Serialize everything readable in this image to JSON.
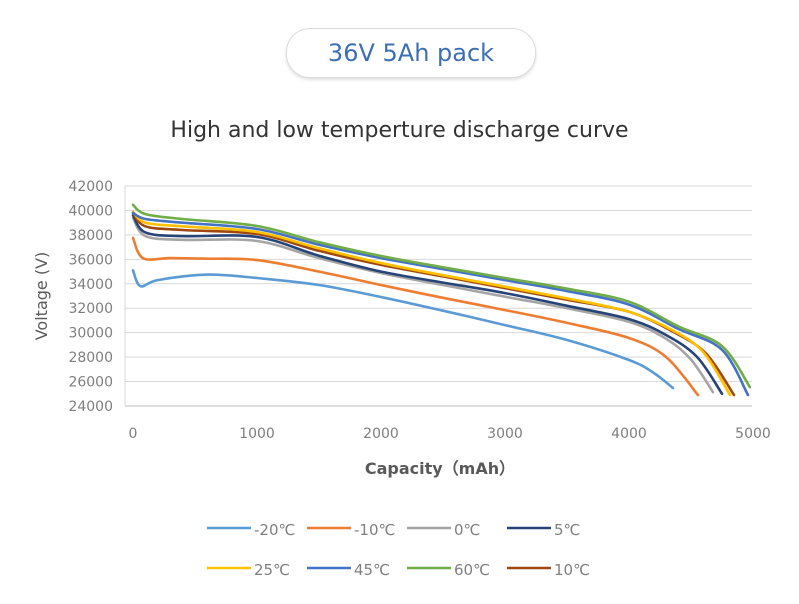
{
  "header": {
    "badge_label": "36V 5Ah pack"
  },
  "chart_data": {
    "type": "line",
    "title": "High and low temperture discharge curve",
    "xlabel": "Capacity（mAh）",
    "ylabel": "Voltage (V)",
    "xlim": [
      0,
      5000
    ],
    "ylim": [
      24000,
      42000
    ],
    "xticks": [
      0,
      1000,
      2000,
      3000,
      4000,
      5000
    ],
    "yticks": [
      24000,
      26000,
      28000,
      30000,
      32000,
      34000,
      36000,
      38000,
      40000,
      42000
    ],
    "grid": "horizontal",
    "legend_position": "bottom",
    "series": [
      {
        "name": "-20℃",
        "color": "#5b9bd5",
        "x": [
          0,
          60,
          200,
          600,
          1000,
          1500,
          2000,
          2500,
          3000,
          3500,
          4000,
          4200,
          4355
        ],
        "y": [
          35100,
          33800,
          34300,
          34750,
          34470,
          33900,
          32920,
          31800,
          30620,
          29400,
          27760,
          26700,
          25470
        ]
      },
      {
        "name": "-10℃",
        "color": "#ed7d31",
        "x": [
          0,
          80,
          300,
          600,
          1000,
          1500,
          2000,
          2500,
          3000,
          3500,
          4000,
          4300,
          4556
        ],
        "y": [
          37750,
          36100,
          36100,
          36050,
          35940,
          35000,
          33900,
          32850,
          31850,
          30800,
          29560,
          28000,
          24900
        ]
      },
      {
        "name": "0℃",
        "color": "#a5a5a5",
        "x": [
          0,
          100,
          400,
          1000,
          1500,
          2000,
          2500,
          3000,
          3500,
          4000,
          4300,
          4500,
          4677
        ],
        "y": [
          39400,
          37900,
          37600,
          37500,
          36100,
          34880,
          33900,
          32940,
          32000,
          30890,
          29500,
          27800,
          25140
        ]
      },
      {
        "name": "5℃",
        "color": "#264478",
        "x": [
          0,
          100,
          400,
          1000,
          1500,
          2000,
          2500,
          3000,
          3500,
          4000,
          4300,
          4550,
          4750
        ],
        "y": [
          39600,
          38200,
          37900,
          37830,
          36300,
          35000,
          34100,
          33240,
          32200,
          31110,
          29800,
          28000,
          25000
        ]
      },
      {
        "name": "25℃",
        "color": "#ffc000",
        "x": [
          0,
          100,
          400,
          1000,
          1500,
          2000,
          2500,
          3000,
          3500,
          4000,
          4350,
          4600,
          4815
        ],
        "y": [
          39900,
          39000,
          38700,
          38240,
          36900,
          35700,
          34700,
          33760,
          32800,
          31710,
          30200,
          28400,
          24900
        ]
      },
      {
        "name": "45℃",
        "color": "#4472c4",
        "x": [
          0,
          100,
          400,
          1000,
          1500,
          2000,
          2500,
          3000,
          3500,
          4000,
          4400,
          4750,
          4960
        ],
        "y": [
          39800,
          39300,
          39000,
          38480,
          37200,
          36100,
          35200,
          34300,
          33400,
          32300,
          30300,
          28600,
          24900
        ]
      },
      {
        "name": "60℃",
        "color": "#70ad47",
        "x": [
          0,
          100,
          400,
          1000,
          1500,
          2000,
          2500,
          3000,
          3500,
          4000,
          4400,
          4750,
          4975
        ],
        "y": [
          40450,
          39700,
          39300,
          38730,
          37400,
          36270,
          35350,
          34470,
          33600,
          32530,
          30500,
          28900,
          25550
        ]
      },
      {
        "name": "10℃",
        "color": "#9e480e",
        "x": [
          0,
          100,
          400,
          1000,
          1500,
          2000,
          2500,
          3000,
          3500,
          4000,
          4350,
          4620,
          4847
        ],
        "y": [
          39800,
          38700,
          38400,
          38070,
          36700,
          35550,
          34600,
          33650,
          32700,
          31710,
          30100,
          28300,
          24900
        ]
      }
    ]
  }
}
